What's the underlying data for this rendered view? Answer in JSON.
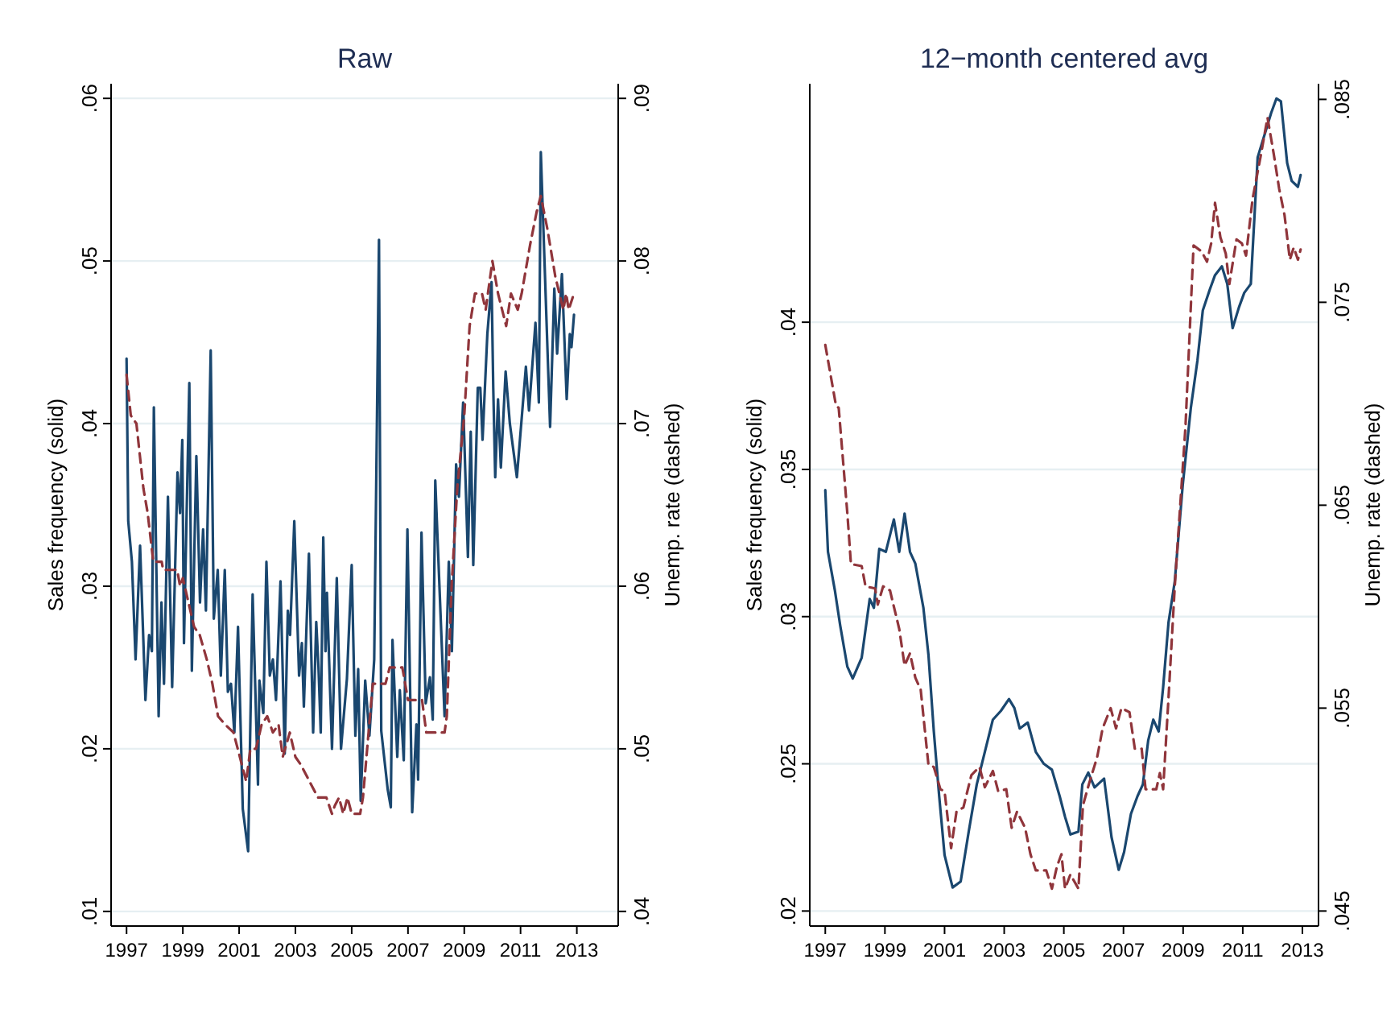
{
  "chart_data": [
    {
      "type": "line",
      "title": "Raw",
      "ylabel": "Sales frequency (solid)",
      "y2label": "Unemp. rate (dashed)",
      "xlim": [
        1996.45,
        2014.47
      ],
      "xticks": [
        1997,
        1999,
        2001,
        2003,
        2005,
        2007,
        2009,
        2011,
        2013
      ],
      "ylim": [
        0.0091,
        0.0609
      ],
      "yticks": [
        {
          "value": 0.01,
          "label": ".01"
        },
        {
          "value": 0.02,
          "label": ".02"
        },
        {
          "value": 0.03,
          "label": ".03"
        },
        {
          "value": 0.04,
          "label": ".04"
        },
        {
          "value": 0.05,
          "label": ".05"
        },
        {
          "value": 0.06,
          "label": ".06"
        }
      ],
      "y2lim": [
        0.0391,
        0.0909
      ],
      "y2ticks": [
        {
          "value": 0.04,
          "label": ".04"
        },
        {
          "value": 0.05,
          "label": ".05"
        },
        {
          "value": 0.06,
          "label": ".06"
        },
        {
          "value": 0.07,
          "label": ".07"
        },
        {
          "value": 0.08,
          "label": ".08"
        },
        {
          "value": 0.09,
          "label": ".09"
        }
      ],
      "grid": "y",
      "series": [
        {
          "color": "#1a476f",
          "axis": "y",
          "line_style": "solid",
          "x": [
            1997,
            1997.06,
            1997.19,
            1997.32,
            1997.48,
            1997.67,
            1997.8,
            1997.9,
            1997.97,
            1998.14,
            1998.24,
            1998.33,
            1998.47,
            1998.62,
            1998.81,
            1998.9,
            1998.98,
            1999.04,
            1999.23,
            1999.32,
            1999.48,
            1999.61,
            1999.72,
            1999.82,
            1999.99,
            2000.1,
            2000.24,
            2000.35,
            2000.49,
            2000.6,
            2000.71,
            2000.83,
            2000.96,
            2001.13,
            2001.32,
            2001.48,
            2001.67,
            2001.72,
            2001.86,
            2001.97,
            2002.09,
            2002.2,
            2002.31,
            2002.47,
            2002.62,
            2002.73,
            2002.81,
            2002.96,
            2003.13,
            2003.23,
            2003.3,
            2003.48,
            2003.63,
            2003.74,
            2003.82,
            2003.9,
            2003.99,
            2004.07,
            2004.12,
            2004.3,
            2004.47,
            2004.62,
            2004.83,
            2005,
            2005.13,
            2005.23,
            2005.32,
            2005.48,
            2005.63,
            2005.8,
            2005.97,
            2006.05,
            2006.28,
            2006.39,
            2006.45,
            2006.62,
            2006.71,
            2006.85,
            2006.98,
            2007.15,
            2007.3,
            2007.36,
            2007.48,
            2007.63,
            2007.78,
            2007.88,
            2007.97,
            2008.3,
            2008.45,
            2008.56,
            2008.71,
            2008.81,
            2008.96,
            2009.13,
            2009.23,
            2009.32,
            2009.48,
            2009.57,
            2009.65,
            2009.82,
            2009.97,
            2010.03,
            2010.1,
            2010.2,
            2010.3,
            2010.47,
            2010.62,
            2010.87,
            2011.19,
            2011.3,
            2011.53,
            2011.65,
            2011.72,
            2012.05,
            2012.2,
            2012.3,
            2012.47,
            2012.64,
            2012.75,
            2012.81,
            2012.9
          ],
          "values": [
            0.044,
            0.034,
            0.0315,
            0.0255,
            0.0325,
            0.023,
            0.027,
            0.026,
            0.041,
            0.022,
            0.029,
            0.024,
            0.0355,
            0.0238,
            0.037,
            0.0345,
            0.039,
            0.0265,
            0.0425,
            0.0248,
            0.038,
            0.029,
            0.0335,
            0.0285,
            0.0445,
            0.028,
            0.031,
            0.0245,
            0.031,
            0.0235,
            0.024,
            0.021,
            0.0275,
            0.0163,
            0.0137,
            0.0295,
            0.0178,
            0.0242,
            0.0222,
            0.0315,
            0.0245,
            0.0255,
            0.023,
            0.0303,
            0.0197,
            0.0285,
            0.027,
            0.034,
            0.0245,
            0.0265,
            0.0226,
            0.032,
            0.021,
            0.0278,
            0.025,
            0.021,
            0.033,
            0.026,
            0.0296,
            0.02,
            0.0305,
            0.02,
            0.0243,
            0.0313,
            0.0208,
            0.0249,
            0.0168,
            0.0242,
            0.0208,
            0.0255,
            0.0513,
            0.0211,
            0.0175,
            0.0164,
            0.0267,
            0.0195,
            0.0236,
            0.0193,
            0.0335,
            0.0161,
            0.0215,
            0.0181,
            0.0333,
            0.0228,
            0.0244,
            0.0218,
            0.0365,
            0.022,
            0.0315,
            0.026,
            0.0375,
            0.0355,
            0.0413,
            0.0318,
            0.0395,
            0.0313,
            0.0422,
            0.0422,
            0.039,
            0.0455,
            0.0487,
            0.0422,
            0.0367,
            0.0415,
            0.0373,
            0.0432,
            0.04,
            0.0367,
            0.0435,
            0.0408,
            0.0462,
            0.0413,
            0.0567,
            0.0398,
            0.0483,
            0.0443,
            0.0492,
            0.0415,
            0.0455,
            0.0447,
            0.0467
          ]
        },
        {
          "color": "#90353b",
          "axis": "y2",
          "line_style": "dashed",
          "x": [
            1997,
            1997.15,
            1997.35,
            1997.6,
            1997.75,
            1997.95,
            1998.25,
            1998.3,
            1998.8,
            1998.9,
            1999,
            1999.2,
            1999.4,
            1999.6,
            1999.85,
            2000.05,
            2000.25,
            2000.5,
            2000.8,
            2001.1,
            2001.25,
            2001.4,
            2001.6,
            2001.8,
            2002,
            2002.2,
            2002.4,
            2002.55,
            2002.8,
            2003,
            2003.2,
            2003.5,
            2003.8,
            2004.1,
            2004.3,
            2004.4,
            2004.55,
            2004.7,
            2004.85,
            2005,
            2005.3,
            2005.4,
            2005.55,
            2005.75,
            2006.2,
            2006.35,
            2006.8,
            2007,
            2007.5,
            2007.65,
            2008.3,
            2008.38,
            2008.55,
            2008.75,
            2009,
            2009.19,
            2009.38,
            2009.63,
            2009.76,
            2010,
            2010.2,
            2010.49,
            2010.66,
            2010.9,
            2011.04,
            2011.34,
            2011.57,
            2011.72,
            2011.95,
            2012.24,
            2012.52,
            2012.62,
            2012.71,
            2012.9
          ],
          "values": [
            0.073,
            0.0705,
            0.07,
            0.066,
            0.0645,
            0.0615,
            0.0615,
            0.061,
            0.061,
            0.06,
            0.0605,
            0.059,
            0.0575,
            0.057,
            0.0555,
            0.054,
            0.052,
            0.0515,
            0.051,
            0.049,
            0.048,
            0.05,
            0.05,
            0.0515,
            0.052,
            0.051,
            0.0515,
            0.0495,
            0.051,
            0.0495,
            0.049,
            0.048,
            0.047,
            0.047,
            0.046,
            0.0465,
            0.047,
            0.046,
            0.047,
            0.046,
            0.046,
            0.047,
            0.05,
            0.054,
            0.054,
            0.055,
            0.055,
            0.053,
            0.053,
            0.051,
            0.051,
            0.052,
            0.06,
            0.066,
            0.0705,
            0.076,
            0.078,
            0.078,
            0.077,
            0.08,
            0.078,
            0.076,
            0.078,
            0.077,
            0.078,
            0.081,
            0.083,
            0.084,
            0.082,
            0.079,
            0.077,
            0.078,
            0.077,
            0.078
          ]
        }
      ]
    },
    {
      "type": "line",
      "title": "12−month centered avg",
      "ylabel": "Sales frequency (solid)",
      "y2label": "Unemp. rate (dashed)",
      "xlim": [
        1996.48,
        2013.54
      ],
      "xticks": [
        1997,
        1999,
        2001,
        2003,
        2005,
        2007,
        2009,
        2011,
        2013
      ],
      "ylim": [
        0.01949,
        0.0481
      ],
      "yticks": [
        {
          "value": 0.02,
          "label": ".02"
        },
        {
          "value": 0.025,
          "label": ".025"
        },
        {
          "value": 0.03,
          "label": ".03"
        },
        {
          "value": 0.035,
          "label": ".035"
        },
        {
          "value": 0.04,
          "label": ".04"
        }
      ],
      "y2lim": [
        0.04426,
        0.08577
      ],
      "y2ticks": [
        {
          "value": 0.045,
          "label": ".045"
        },
        {
          "value": 0.055,
          "label": ".055"
        },
        {
          "value": 0.065,
          "label": ".065"
        },
        {
          "value": 0.075,
          "label": ".075"
        },
        {
          "value": 0.085,
          "label": ".085"
        }
      ],
      "grid": "y",
      "series": [
        {
          "color": "#1a476f",
          "axis": "y",
          "line_style": "solid",
          "x": [
            1997,
            1997.09,
            1997.32,
            1997.5,
            1997.74,
            1997.92,
            1998.22,
            1998.49,
            1998.63,
            1998.81,
            1999.03,
            1999.3,
            1999.48,
            1999.66,
            1999.84,
            2000.02,
            2000.29,
            2000.46,
            2000.64,
            2000.82,
            2001,
            2001.27,
            2001.54,
            2001.81,
            2002.08,
            2002.35,
            2002.62,
            2002.89,
            2003.16,
            2003.34,
            2003.52,
            2003.79,
            2004.06,
            2004.33,
            2004.6,
            2004.86,
            2005.04,
            2005.22,
            2005.49,
            2005.62,
            2005.82,
            2006.03,
            2006.35,
            2006.6,
            2006.84,
            2007.02,
            2007.25,
            2007.47,
            2007.65,
            2007.83,
            2008,
            2008.18,
            2008.33,
            2008.51,
            2008.72,
            2008.99,
            2009.26,
            2009.48,
            2009.66,
            2009.89,
            2010.07,
            2010.3,
            2010.48,
            2010.66,
            2010.87,
            2011.05,
            2011.27,
            2011.5,
            2011.77,
            2011.95,
            2012.13,
            2012.28,
            2012.49,
            2012.64,
            2012.85,
            2012.94
          ],
          "values": [
            0.0343,
            0.0322,
            0.0309,
            0.0297,
            0.0283,
            0.0279,
            0.0286,
            0.0306,
            0.0303,
            0.0323,
            0.0322,
            0.0333,
            0.0322,
            0.0335,
            0.0322,
            0.0318,
            0.0303,
            0.0287,
            0.0261,
            0.0239,
            0.0219,
            0.0208,
            0.021,
            0.0227,
            0.0243,
            0.0254,
            0.0265,
            0.0268,
            0.0272,
            0.0269,
            0.0262,
            0.0264,
            0.0254,
            0.025,
            0.0248,
            0.0239,
            0.0232,
            0.0226,
            0.0227,
            0.0243,
            0.0247,
            0.0242,
            0.0245,
            0.0225,
            0.0214,
            0.022,
            0.0233,
            0.0239,
            0.0243,
            0.0258,
            0.0265,
            0.0261,
            0.0276,
            0.0298,
            0.0312,
            0.0345,
            0.0371,
            0.0387,
            0.0404,
            0.0411,
            0.0416,
            0.0419,
            0.0413,
            0.0398,
            0.0405,
            0.041,
            0.0413,
            0.0456,
            0.0465,
            0.0471,
            0.0476,
            0.0475,
            0.0454,
            0.0448,
            0.0446,
            0.045
          ]
        },
        {
          "color": "#90353b",
          "axis": "y2",
          "line_style": "dashed",
          "x": [
            1997,
            1997.36,
            1997.45,
            1997.74,
            1997.86,
            1998.22,
            1998.35,
            1998.67,
            1998.76,
            1998.94,
            1999.17,
            1999.3,
            1999.48,
            1999.66,
            1999.84,
            2000.02,
            2000.2,
            2000.34,
            2000.46,
            2000.64,
            2000.86,
            2001,
            2001.22,
            2001.4,
            2001.63,
            2001.9,
            2002.17,
            2002.35,
            2002.62,
            2002.8,
            2003.07,
            2003.25,
            2003.43,
            2003.7,
            2003.88,
            2004.06,
            2004.41,
            2004.6,
            2004.77,
            2004.92,
            2005.04,
            2005.22,
            2005.49,
            2005.64,
            2005.85,
            2006.12,
            2006.3,
            2006.57,
            2006.75,
            2006.93,
            2007.2,
            2007.38,
            2007.61,
            2007.74,
            2008.1,
            2008.22,
            2008.33,
            2008.51,
            2008.72,
            2008.94,
            2009.08,
            2009.35,
            2009.62,
            2009.8,
            2009.94,
            2010.07,
            2010.25,
            2010.43,
            2010.55,
            2010.79,
            2010.97,
            2011.11,
            2011.33,
            2011.6,
            2011.83,
            2012.04,
            2012.22,
            2012.4,
            2012.58,
            2012.71,
            2012.85,
            2012.94
          ],
          "values": [
            0.0729,
            0.0699,
            0.0698,
            0.0646,
            0.0621,
            0.062,
            0.061,
            0.0609,
            0.0601,
            0.061,
            0.0608,
            0.06,
            0.0589,
            0.0571,
            0.0577,
            0.0565,
            0.0559,
            0.0539,
            0.0522,
            0.0521,
            0.051,
            0.0509,
            0.0481,
            0.0499,
            0.0501,
            0.0517,
            0.0521,
            0.0511,
            0.0519,
            0.0509,
            0.051,
            0.0491,
            0.0499,
            0.0491,
            0.0478,
            0.047,
            0.047,
            0.0461,
            0.0472,
            0.0478,
            0.0461,
            0.0468,
            0.0461,
            0.0502,
            0.0513,
            0.0526,
            0.054,
            0.055,
            0.054,
            0.055,
            0.0548,
            0.053,
            0.053,
            0.051,
            0.051,
            0.0518,
            0.051,
            0.0555,
            0.061,
            0.0658,
            0.0689,
            0.0778,
            0.0775,
            0.077,
            0.0779,
            0.0799,
            0.0782,
            0.0774,
            0.0759,
            0.0781,
            0.0779,
            0.0773,
            0.0801,
            0.0822,
            0.0841,
            0.0823,
            0.0806,
            0.0793,
            0.0771,
            0.0777,
            0.0771,
            0.0776
          ]
        }
      ]
    }
  ]
}
